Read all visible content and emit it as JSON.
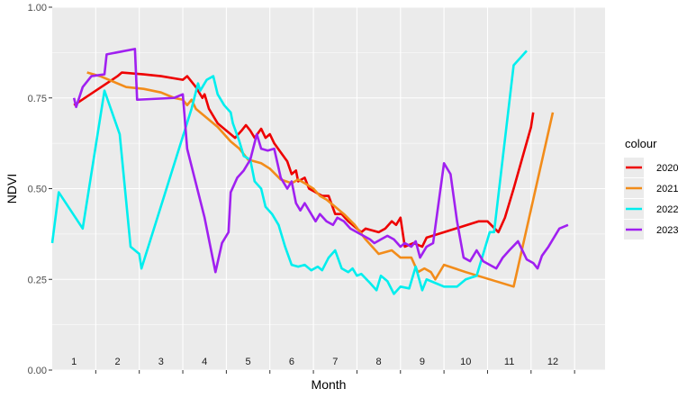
{
  "chart_data": {
    "type": "line",
    "title": "",
    "xlabel": "Month",
    "ylabel": "NDVI",
    "x_unit": "month",
    "xlim": [
      0.5,
      13.2
    ],
    "ylim": [
      0,
      1
    ],
    "y_ticks": [
      0.0,
      0.25,
      0.5,
      0.75,
      1.0
    ],
    "y_tick_labels": [
      "0.00",
      "0.25",
      "0.50",
      "0.75",
      "1.00"
    ],
    "month_labels": [
      "1",
      "2",
      "3",
      "4",
      "5",
      "6",
      "7",
      "8",
      "9",
      "10",
      "11",
      "12"
    ],
    "grid": true,
    "legend": {
      "title": "colour",
      "position": "right"
    },
    "series": [
      {
        "name": "2020",
        "color": "#EE0000",
        "points": [
          [
            1.0,
            0.73
          ],
          [
            1.5,
            0.77
          ],
          [
            2.0,
            0.81
          ],
          [
            2.1,
            0.82
          ],
          [
            2.6,
            0.815
          ],
          [
            3.0,
            0.81
          ],
          [
            3.5,
            0.8
          ],
          [
            3.6,
            0.81
          ],
          [
            3.8,
            0.78
          ],
          [
            3.95,
            0.75
          ],
          [
            4.0,
            0.76
          ],
          [
            4.05,
            0.74
          ],
          [
            4.1,
            0.72
          ],
          [
            4.3,
            0.68
          ],
          [
            4.7,
            0.64
          ],
          [
            4.85,
            0.66
          ],
          [
            4.95,
            0.675
          ],
          [
            5.05,
            0.66
          ],
          [
            5.15,
            0.64
          ],
          [
            5.3,
            0.665
          ],
          [
            5.4,
            0.64
          ],
          [
            5.5,
            0.65
          ],
          [
            5.6,
            0.625
          ],
          [
            5.75,
            0.6
          ],
          [
            5.9,
            0.575
          ],
          [
            6.0,
            0.54
          ],
          [
            6.1,
            0.55
          ],
          [
            6.15,
            0.52
          ],
          [
            6.3,
            0.53
          ],
          [
            6.4,
            0.5
          ],
          [
            6.55,
            0.49
          ],
          [
            6.7,
            0.48
          ],
          [
            6.85,
            0.48
          ],
          [
            7.0,
            0.43
          ],
          [
            7.15,
            0.43
          ],
          [
            7.3,
            0.41
          ],
          [
            7.4,
            0.4
          ],
          [
            7.6,
            0.38
          ],
          [
            7.7,
            0.39
          ],
          [
            7.85,
            0.385
          ],
          [
            8.0,
            0.38
          ],
          [
            8.15,
            0.39
          ],
          [
            8.3,
            0.41
          ],
          [
            8.4,
            0.4
          ],
          [
            8.5,
            0.42
          ],
          [
            8.6,
            0.34
          ],
          [
            8.8,
            0.35
          ],
          [
            9.0,
            0.34
          ],
          [
            9.1,
            0.365
          ],
          [
            9.5,
            0.38
          ],
          [
            10.3,
            0.41
          ],
          [
            10.5,
            0.41
          ],
          [
            10.75,
            0.38
          ],
          [
            10.9,
            0.42
          ],
          [
            11.1,
            0.5
          ],
          [
            11.5,
            0.67
          ],
          [
            11.55,
            0.71
          ]
        ]
      },
      {
        "name": "2021",
        "color": "#F28C1A",
        "points": [
          [
            1.3,
            0.82
          ],
          [
            1.6,
            0.81
          ],
          [
            2.2,
            0.78
          ],
          [
            2.6,
            0.775
          ],
          [
            3.0,
            0.765
          ],
          [
            3.3,
            0.75
          ],
          [
            3.5,
            0.745
          ],
          [
            3.6,
            0.73
          ],
          [
            3.7,
            0.745
          ],
          [
            3.8,
            0.72
          ],
          [
            4.0,
            0.7
          ],
          [
            4.3,
            0.67
          ],
          [
            4.6,
            0.63
          ],
          [
            4.8,
            0.61
          ],
          [
            5.0,
            0.58
          ],
          [
            5.3,
            0.57
          ],
          [
            5.5,
            0.555
          ],
          [
            5.75,
            0.525
          ],
          [
            6.0,
            0.515
          ],
          [
            6.15,
            0.525
          ],
          [
            6.3,
            0.515
          ],
          [
            6.5,
            0.5
          ],
          [
            6.65,
            0.48
          ],
          [
            6.8,
            0.47
          ],
          [
            7.0,
            0.45
          ],
          [
            7.2,
            0.43
          ],
          [
            7.45,
            0.4
          ],
          [
            7.7,
            0.36
          ],
          [
            8.0,
            0.32
          ],
          [
            8.3,
            0.33
          ],
          [
            8.5,
            0.31
          ],
          [
            8.75,
            0.31
          ],
          [
            8.9,
            0.27
          ],
          [
            9.05,
            0.28
          ],
          [
            9.2,
            0.27
          ],
          [
            9.3,
            0.25
          ],
          [
            9.5,
            0.29
          ],
          [
            10.0,
            0.27
          ],
          [
            11.1,
            0.23
          ],
          [
            12.0,
            0.71
          ]
        ]
      },
      {
        "name": "2022",
        "color": "#00EEEE",
        "points": [
          [
            0.5,
            0.35
          ],
          [
            0.65,
            0.49
          ],
          [
            1.2,
            0.39
          ],
          [
            1.7,
            0.77
          ],
          [
            2.05,
            0.65
          ],
          [
            2.3,
            0.34
          ],
          [
            2.5,
            0.32
          ],
          [
            2.55,
            0.28
          ],
          [
            3.7,
            0.72
          ],
          [
            3.85,
            0.79
          ],
          [
            3.9,
            0.77
          ],
          [
            4.05,
            0.8
          ],
          [
            4.2,
            0.81
          ],
          [
            4.3,
            0.76
          ],
          [
            4.45,
            0.73
          ],
          [
            4.6,
            0.71
          ],
          [
            4.65,
            0.68
          ],
          [
            4.8,
            0.63
          ],
          [
            4.9,
            0.59
          ],
          [
            5.05,
            0.58
          ],
          [
            5.15,
            0.52
          ],
          [
            5.3,
            0.5
          ],
          [
            5.4,
            0.45
          ],
          [
            5.55,
            0.43
          ],
          [
            5.7,
            0.4
          ],
          [
            5.85,
            0.34
          ],
          [
            6.0,
            0.29
          ],
          [
            6.15,
            0.285
          ],
          [
            6.3,
            0.29
          ],
          [
            6.45,
            0.275
          ],
          [
            6.6,
            0.285
          ],
          [
            6.7,
            0.275
          ],
          [
            6.85,
            0.31
          ],
          [
            7.0,
            0.33
          ],
          [
            7.15,
            0.28
          ],
          [
            7.3,
            0.27
          ],
          [
            7.4,
            0.28
          ],
          [
            7.5,
            0.26
          ],
          [
            7.6,
            0.265
          ],
          [
            7.8,
            0.24
          ],
          [
            7.95,
            0.22
          ],
          [
            8.05,
            0.26
          ],
          [
            8.2,
            0.245
          ],
          [
            8.35,
            0.21
          ],
          [
            8.5,
            0.23
          ],
          [
            8.7,
            0.225
          ],
          [
            8.85,
            0.285
          ],
          [
            9.0,
            0.22
          ],
          [
            9.1,
            0.25
          ],
          [
            9.5,
            0.23
          ],
          [
            9.8,
            0.23
          ],
          [
            10.0,
            0.25
          ],
          [
            10.25,
            0.26
          ],
          [
            10.55,
            0.38
          ],
          [
            10.65,
            0.38
          ],
          [
            11.1,
            0.84
          ],
          [
            11.4,
            0.88
          ]
        ]
      },
      {
        "name": "2023",
        "color": "#A020F0",
        "points": [
          [
            1.0,
            0.75
          ],
          [
            1.05,
            0.725
          ],
          [
            1.2,
            0.78
          ],
          [
            1.4,
            0.81
          ],
          [
            1.7,
            0.815
          ],
          [
            1.75,
            0.87
          ],
          [
            2.4,
            0.885
          ],
          [
            2.45,
            0.745
          ],
          [
            3.3,
            0.75
          ],
          [
            3.5,
            0.76
          ],
          [
            3.6,
            0.61
          ],
          [
            4.0,
            0.42
          ],
          [
            4.25,
            0.27
          ],
          [
            4.4,
            0.35
          ],
          [
            4.55,
            0.38
          ],
          [
            4.6,
            0.49
          ],
          [
            4.75,
            0.53
          ],
          [
            4.9,
            0.55
          ],
          [
            5.05,
            0.58
          ],
          [
            5.2,
            0.65
          ],
          [
            5.3,
            0.61
          ],
          [
            5.45,
            0.605
          ],
          [
            5.6,
            0.61
          ],
          [
            5.75,
            0.53
          ],
          [
            5.9,
            0.5
          ],
          [
            6.0,
            0.52
          ],
          [
            6.1,
            0.46
          ],
          [
            6.2,
            0.44
          ],
          [
            6.3,
            0.46
          ],
          [
            6.4,
            0.44
          ],
          [
            6.55,
            0.41
          ],
          [
            6.65,
            0.43
          ],
          [
            6.8,
            0.41
          ],
          [
            6.95,
            0.4
          ],
          [
            7.05,
            0.42
          ],
          [
            7.2,
            0.41
          ],
          [
            7.35,
            0.39
          ],
          [
            7.5,
            0.38
          ],
          [
            7.65,
            0.37
          ],
          [
            7.8,
            0.36
          ],
          [
            7.9,
            0.35
          ],
          [
            8.05,
            0.36
          ],
          [
            8.2,
            0.37
          ],
          [
            8.35,
            0.36
          ],
          [
            8.5,
            0.34
          ],
          [
            8.6,
            0.35
          ],
          [
            8.75,
            0.34
          ],
          [
            8.85,
            0.355
          ],
          [
            8.95,
            0.31
          ],
          [
            9.1,
            0.34
          ],
          [
            9.25,
            0.35
          ],
          [
            9.5,
            0.57
          ],
          [
            9.65,
            0.54
          ],
          [
            9.8,
            0.41
          ],
          [
            9.95,
            0.31
          ],
          [
            10.1,
            0.3
          ],
          [
            10.25,
            0.33
          ],
          [
            10.4,
            0.3
          ],
          [
            10.55,
            0.29
          ],
          [
            10.7,
            0.28
          ],
          [
            10.85,
            0.31
          ],
          [
            11.0,
            0.33
          ],
          [
            11.2,
            0.355
          ],
          [
            11.4,
            0.305
          ],
          [
            11.55,
            0.295
          ],
          [
            11.65,
            0.28
          ],
          [
            11.75,
            0.315
          ],
          [
            11.9,
            0.34
          ],
          [
            12.15,
            0.39
          ],
          [
            12.35,
            0.4
          ]
        ]
      }
    ]
  }
}
